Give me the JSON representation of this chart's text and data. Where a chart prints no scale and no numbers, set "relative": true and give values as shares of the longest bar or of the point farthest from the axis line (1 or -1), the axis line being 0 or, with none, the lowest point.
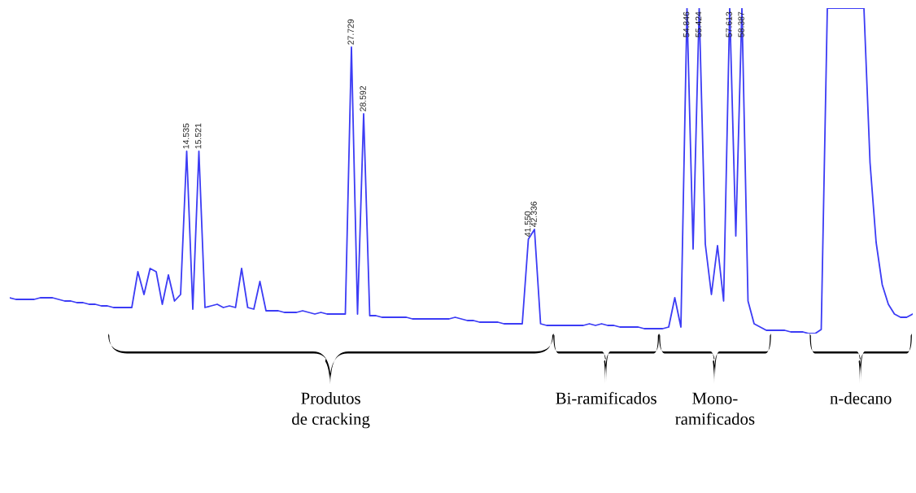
{
  "chart_data": {
    "type": "line",
    "relative": true,
    "tick_labels": "x",
    "marker": "none",
    "line_style": "solid",
    "annotations": [
      "Produtos\nde cracking",
      "Bi-ramificados",
      "Mono-\nramificados",
      "n-decano"
    ],
    "categories": [
      null,
      null,
      null,
      null,
      null,
      null,
      null,
      null,
      null,
      null,
      null,
      null,
      null,
      null,
      null,
      null,
      null,
      null,
      null,
      null,
      null,
      null,
      null,
      null,
      null,
      null,
      null,
      null,
      null,
      "14.535",
      null,
      "15.521",
      null,
      null,
      null,
      null,
      null,
      null,
      null,
      null,
      null,
      null,
      null,
      null,
      null,
      null,
      null,
      null,
      null,
      null,
      null,
      null,
      null,
      null,
      null,
      null,
      "27.729",
      null,
      "28.592",
      null,
      null,
      null,
      null,
      null,
      null,
      null,
      null,
      null,
      null,
      null,
      null,
      null,
      null,
      null,
      null,
      null,
      null,
      null,
      null,
      null,
      null,
      null,
      null,
      null,
      null,
      "41.550",
      "42.336",
      null,
      null,
      null,
      null,
      null,
      null,
      null,
      null,
      null,
      null,
      null,
      null,
      null,
      null,
      null,
      null,
      null,
      null,
      null,
      null,
      null,
      null,
      null,
      null,
      "54.846",
      null,
      "55.424",
      null,
      null,
      null,
      null,
      "57.613",
      null,
      "58.387",
      null,
      null,
      null,
      null,
      null,
      null,
      null,
      null,
      null,
      null,
      null,
      null,
      null,
      null,
      null,
      null,
      null,
      null,
      null,
      null,
      null,
      null,
      null,
      null,
      null,
      null,
      null,
      null
    ],
    "series": [
      {
        "color": "#3c3cf5",
        "values": [
          0.11,
          0.105,
          0.105,
          0.105,
          0.105,
          0.11,
          0.11,
          0.11,
          0.105,
          0.1,
          0.1,
          0.095,
          0.095,
          0.09,
          0.09,
          0.085,
          0.085,
          0.08,
          0.08,
          0.08,
          0.08,
          0.19,
          0.12,
          0.2,
          0.19,
          0.09,
          0.18,
          0.1,
          0.12,
          0.56,
          0.075,
          0.56,
          0.08,
          0.085,
          0.09,
          0.08,
          0.085,
          0.08,
          0.2,
          0.08,
          0.075,
          0.16,
          0.07,
          0.07,
          0.07,
          0.065,
          0.065,
          0.065,
          0.07,
          0.065,
          0.06,
          0.065,
          0.06,
          0.06,
          0.06,
          0.06,
          0.88,
          0.06,
          0.675,
          0.055,
          0.055,
          0.05,
          0.05,
          0.05,
          0.05,
          0.05,
          0.045,
          0.045,
          0.045,
          0.045,
          0.045,
          0.045,
          0.045,
          0.05,
          0.045,
          0.04,
          0.04,
          0.035,
          0.035,
          0.035,
          0.035,
          0.03,
          0.03,
          0.03,
          0.03,
          0.29,
          0.32,
          0.03,
          0.025,
          0.025,
          0.025,
          0.025,
          0.025,
          0.025,
          0.025,
          0.03,
          0.025,
          0.03,
          0.025,
          0.025,
          0.02,
          0.02,
          0.02,
          0.02,
          0.015,
          0.015,
          0.015,
          0.015,
          0.02,
          0.11,
          0.02,
          1.0,
          0.26,
          1.0,
          0.275,
          0.12,
          0.27,
          0.1,
          1.0,
          0.3,
          1.0,
          0.1,
          0.03,
          0.02,
          0.01,
          0.01,
          0.01,
          0.01,
          0.005,
          0.005,
          0.005,
          0.0,
          0.0,
          0.0125,
          1.0,
          1.0,
          1.0,
          1.0,
          1.0,
          1.0,
          1.0,
          0.525,
          0.28,
          0.15,
          0.09,
          0.06,
          0.05,
          0.05,
          0.06
        ]
      }
    ]
  }
}
